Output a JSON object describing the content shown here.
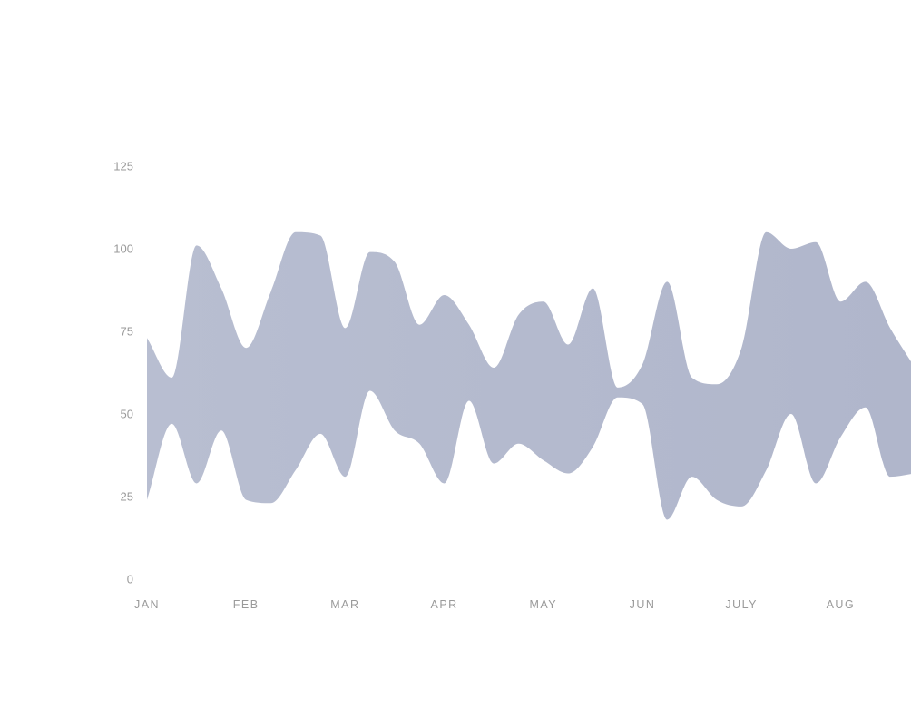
{
  "colors": {
    "band_fill": "#b8bed1",
    "band_fill_right": "#b0b6cb",
    "tick_text": "#9a9a9a",
    "background": "#ffffff"
  },
  "chart_data": {
    "type": "area",
    "subtype": "range-band",
    "title": "",
    "xlabel": "",
    "ylabel": "",
    "ylim": [
      0,
      125
    ],
    "yticks": [
      0,
      25,
      50,
      75,
      100,
      125
    ],
    "grid": false,
    "legend": "none",
    "categories": [
      "JAN",
      "FEB",
      "MAR",
      "APR",
      "MAY",
      "JUN",
      "JULY",
      "AUG"
    ],
    "x": [
      0,
      0.25,
      0.5,
      0.75,
      1,
      1.25,
      1.5,
      1.75,
      2,
      2.25,
      2.5,
      2.75,
      3,
      3.25,
      3.5,
      3.75,
      4,
      4.25,
      4.5,
      4.75,
      5,
      5.25,
      5.5,
      5.75,
      6,
      6.25,
      6.5,
      6.75,
      7,
      7.25,
      7.5,
      7.75
    ],
    "series": [
      {
        "upper": [
          73,
          61,
          101,
          88,
          70,
          87,
          105,
          104,
          76,
          99,
          96,
          77,
          86,
          77,
          64,
          80,
          84,
          71,
          88,
          58,
          65,
          90,
          61,
          59,
          70,
          105,
          100,
          102,
          84,
          90,
          76,
          64
        ],
        "lower": [
          24,
          47,
          29,
          45,
          24,
          23,
          33,
          44,
          31,
          57,
          45,
          41,
          29,
          54,
          35,
          41,
          36,
          32,
          40,
          55,
          53,
          18,
          31,
          24,
          22,
          33,
          50,
          29,
          43,
          52,
          31,
          32
        ]
      }
    ]
  }
}
